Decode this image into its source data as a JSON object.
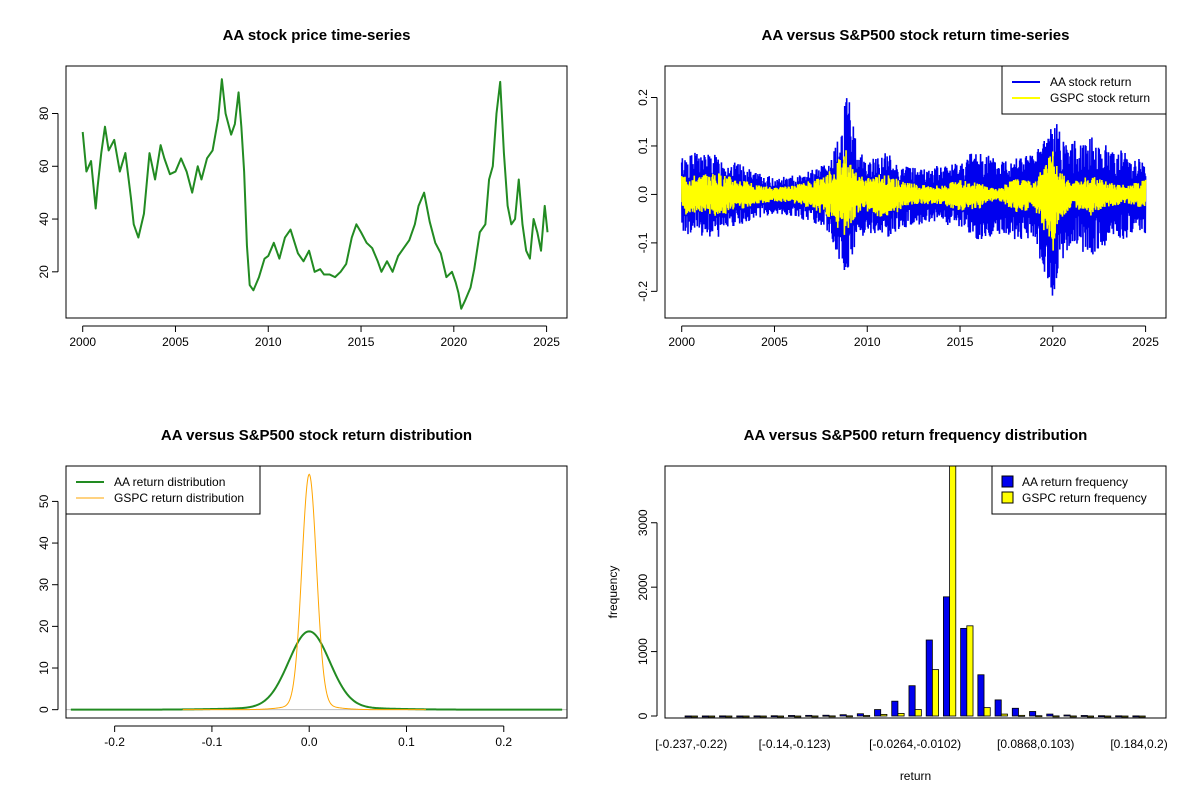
{
  "colors": {
    "green": "#228B22",
    "blue": "#0000EE",
    "yellow": "#FFFF00",
    "orange": "#FFA500",
    "axis": "#000000",
    "zero_line": "#BEBEBE"
  },
  "chart_data": [
    {
      "id": "p1",
      "type": "line",
      "title": "AA stock price time-series",
      "xlabel": "",
      "ylabel": "",
      "xlim": [
        1999.1,
        2026.1
      ],
      "ylim": [
        2.5,
        98
      ],
      "xticks": [
        2000,
        2005,
        2010,
        2015,
        2020,
        2025
      ],
      "xtick_labels": [
        "2000",
        "2005",
        "2010",
        "2015",
        "2020",
        "2025"
      ],
      "yticks": [
        20,
        40,
        60,
        80
      ],
      "ytick_labels": [
        "20",
        "40",
        "60",
        "80"
      ],
      "series": [
        {
          "color": "#228B22",
          "x": [
            2000.0,
            2000.2,
            2000.45,
            2000.7,
            2000.8,
            2001.0,
            2001.2,
            2001.4,
            2001.7,
            2002.0,
            2002.3,
            2002.6,
            2002.75,
            2003.0,
            2003.3,
            2003.6,
            2003.9,
            2004.2,
            2004.4,
            2004.7,
            2005.0,
            2005.3,
            2005.6,
            2005.9,
            2006.2,
            2006.4,
            2006.7,
            2007.0,
            2007.3,
            2007.5,
            2007.7,
            2008.0,
            2008.2,
            2008.4,
            2008.55,
            2008.7,
            2008.85,
            2009.0,
            2009.2,
            2009.5,
            2009.8,
            2010.0,
            2010.3,
            2010.6,
            2010.9,
            2011.2,
            2011.6,
            2011.9,
            2012.2,
            2012.5,
            2012.8,
            2013.0,
            2013.3,
            2013.6,
            2013.9,
            2014.2,
            2014.5,
            2014.75,
            2015.0,
            2015.3,
            2015.6,
            2015.9,
            2016.1,
            2016.4,
            2016.7,
            2017.0,
            2017.3,
            2017.6,
            2017.9,
            2018.1,
            2018.4,
            2018.7,
            2019.0,
            2019.3,
            2019.6,
            2019.9,
            2020.1,
            2020.25,
            2020.4,
            2020.6,
            2020.9,
            2021.1,
            2021.4,
            2021.7,
            2021.9,
            2022.1,
            2022.3,
            2022.5,
            2022.7,
            2022.9,
            2023.1,
            2023.3,
            2023.5,
            2023.7,
            2023.9,
            2024.1,
            2024.3,
            2024.5,
            2024.7,
            2024.9,
            2025.05
          ],
          "y": [
            73,
            58,
            62,
            44,
            52,
            65,
            75,
            66,
            70,
            58,
            65,
            48,
            38,
            33,
            42,
            65,
            55,
            68,
            63,
            57,
            58,
            63,
            58,
            50,
            60,
            55,
            63,
            66,
            78,
            93,
            80,
            72,
            76,
            88,
            75,
            58,
            30,
            15,
            13,
            18,
            25,
            26,
            31,
            25,
            33,
            36,
            27,
            24,
            28,
            20,
            21,
            19,
            19,
            18,
            20,
            23,
            33,
            38,
            35,
            31,
            29,
            24,
            20,
            24,
            20,
            26,
            29,
            32,
            38,
            45,
            50,
            39,
            31,
            27,
            18,
            20,
            16,
            12,
            6,
            9,
            14,
            21,
            35,
            38,
            55,
            60,
            80,
            92,
            65,
            45,
            38,
            40,
            55,
            38,
            28,
            25,
            40,
            35,
            28,
            45,
            35
          ]
        }
      ]
    },
    {
      "id": "p2",
      "type": "line",
      "title": "AA versus S&P500 stock return time-series",
      "xlabel": "",
      "ylabel": "",
      "xlim": [
        1999.1,
        2026.1
      ],
      "ylim": [
        -0.255,
        0.265
      ],
      "xticks": [
        2000,
        2005,
        2010,
        2015,
        2020,
        2025
      ],
      "xtick_labels": [
        "2000",
        "2005",
        "2010",
        "2015",
        "2020",
        "2025"
      ],
      "yticks": [
        -0.2,
        -0.1,
        0.0,
        0.1,
        0.2
      ],
      "ytick_labels": [
        "-0.2",
        "-0.1",
        "0.0",
        "0.1",
        "0.2"
      ],
      "legend": {
        "position": "top-right",
        "entries": [
          {
            "label": "AA stock return",
            "color": "#0000EE"
          },
          {
            "label": "GSPC stock return",
            "color": "#FFFF00"
          }
        ]
      },
      "series": [
        {
          "name": "AA stock return",
          "color": "#0000EE",
          "kind": "band",
          "x": [
            2000,
            2001,
            2002,
            2003,
            2004,
            2005,
            2006,
            2007,
            2008,
            2008.5,
            2008.8,
            2009,
            2009.5,
            2010,
            2011,
            2012,
            2013,
            2014,
            2015,
            2016,
            2017,
            2018,
            2019,
            2020,
            2020.3,
            2021,
            2022,
            2023,
            2024,
            2025
          ],
          "upper": [
            0.08,
            0.09,
            0.08,
            0.065,
            0.045,
            0.035,
            0.04,
            0.05,
            0.07,
            0.12,
            0.2,
            0.2,
            0.1,
            0.07,
            0.09,
            0.06,
            0.055,
            0.06,
            0.07,
            0.1,
            0.07,
            0.09,
            0.08,
            0.16,
            0.14,
            0.11,
            0.12,
            0.1,
            0.09,
            0.07
          ],
          "lower": [
            -0.08,
            -0.09,
            -0.09,
            -0.07,
            -0.05,
            -0.04,
            -0.045,
            -0.06,
            -0.08,
            -0.14,
            -0.17,
            -0.17,
            -0.1,
            -0.08,
            -0.09,
            -0.07,
            -0.06,
            -0.06,
            -0.07,
            -0.1,
            -0.08,
            -0.1,
            -0.09,
            -0.23,
            -0.15,
            -0.1,
            -0.13,
            -0.1,
            -0.09,
            -0.08
          ]
        },
        {
          "name": "GSPC stock return",
          "color": "#FFFF00",
          "kind": "band",
          "x": [
            2000,
            2001,
            2002,
            2003,
            2004,
            2005,
            2006,
            2007,
            2008,
            2008.8,
            2009,
            2009.5,
            2010,
            2011,
            2012,
            2013,
            2014,
            2015,
            2016,
            2017,
            2018,
            2019,
            2020,
            2020.3,
            2021,
            2022,
            2023,
            2024,
            2025
          ],
          "upper": [
            0.045,
            0.04,
            0.045,
            0.035,
            0.02,
            0.015,
            0.018,
            0.03,
            0.05,
            0.1,
            0.07,
            0.04,
            0.035,
            0.045,
            0.025,
            0.02,
            0.02,
            0.03,
            0.025,
            0.01,
            0.035,
            0.025,
            0.09,
            0.05,
            0.025,
            0.04,
            0.025,
            0.02,
            0.03
          ],
          "lower": [
            -0.045,
            -0.04,
            -0.045,
            -0.035,
            -0.02,
            -0.015,
            -0.018,
            -0.03,
            -0.05,
            -0.09,
            -0.07,
            -0.04,
            -0.035,
            -0.06,
            -0.025,
            -0.02,
            -0.02,
            -0.035,
            -0.03,
            -0.01,
            -0.04,
            -0.03,
            -0.12,
            -0.06,
            -0.025,
            -0.045,
            -0.025,
            -0.02,
            -0.03
          ]
        }
      ]
    },
    {
      "id": "p3",
      "type": "line",
      "title": "AA versus S&P500 stock return distribution",
      "xlabel": "",
      "ylabel": "",
      "xlim": [
        -0.25,
        0.265
      ],
      "ylim": [
        -2,
        58.5
      ],
      "xticks": [
        -0.2,
        -0.1,
        0.0,
        0.1,
        0.2
      ],
      "xtick_labels": [
        "-0.2",
        "-0.1",
        "0.0",
        "0.1",
        "0.2"
      ],
      "yticks": [
        0,
        10,
        20,
        30,
        40,
        50
      ],
      "ytick_labels": [
        "0",
        "10",
        "20",
        "30",
        "40",
        "50"
      ],
      "legend": {
        "position": "top-left",
        "entries": [
          {
            "label": "AA return distribution",
            "color": "#228B22"
          },
          {
            "label": "GSPC return distribution",
            "color": "#FFA500"
          }
        ]
      },
      "series": [
        {
          "name": "AA return distribution",
          "color": "#228B22",
          "kind": "density",
          "mu": 0.0,
          "sigma": 0.021,
          "peak": 18.8,
          "tail": 0.6,
          "tail_sigma": 0.06,
          "xmin": -0.245,
          "xmax": 0.26,
          "width": 2
        },
        {
          "name": "GSPC return distribution",
          "color": "#FFA500",
          "kind": "density",
          "mu": 0.0,
          "sigma": 0.0075,
          "peak": 56.5,
          "tail": 1.2,
          "tail_sigma": 0.022,
          "xmin": -0.13,
          "xmax": 0.12,
          "width": 1
        }
      ]
    },
    {
      "id": "p4",
      "type": "bar",
      "title": "AA versus S&P500 return frequency distribution",
      "xlabel": "return",
      "ylabel": "frequency",
      "ylim": [
        0,
        3850
      ],
      "yticks": [
        0,
        1000,
        2000,
        3000
      ],
      "ytick_labels": [
        "0",
        "1000",
        "2000",
        "3000"
      ],
      "xtick_labels": [
        "[-0.237,-0.22)",
        "[-0.14,-0.123)",
        "[-0.0264,-0.0102)",
        "[0.0868,0.103)",
        "[0.184,0.2)"
      ],
      "xtick_bins": [
        0,
        6,
        13,
        20,
        26
      ],
      "bin_count": 27,
      "legend": {
        "position": "top-right",
        "entries": [
          {
            "label": "AA return frequency",
            "color": "#0000EE"
          },
          {
            "label": "GSPC return frequency",
            "color": "#FFFF00"
          }
        ]
      },
      "series": [
        {
          "name": "AA return frequency",
          "color": "#0000EE",
          "values": [
            1,
            1,
            2,
            1,
            2,
            4,
            8,
            10,
            12,
            20,
            35,
            100,
            230,
            470,
            1180,
            1850,
            1360,
            640,
            250,
            120,
            70,
            30,
            15,
            8,
            5,
            3,
            2
          ]
        },
        {
          "name": "GSPC return frequency",
          "color": "#FFFF00",
          "values": [
            0,
            0,
            0,
            0,
            0,
            0,
            0,
            1,
            2,
            3,
            8,
            25,
            40,
            100,
            720,
            3900,
            1400,
            130,
            30,
            10,
            5,
            2,
            1,
            0,
            0,
            0,
            0
          ]
        }
      ]
    }
  ]
}
